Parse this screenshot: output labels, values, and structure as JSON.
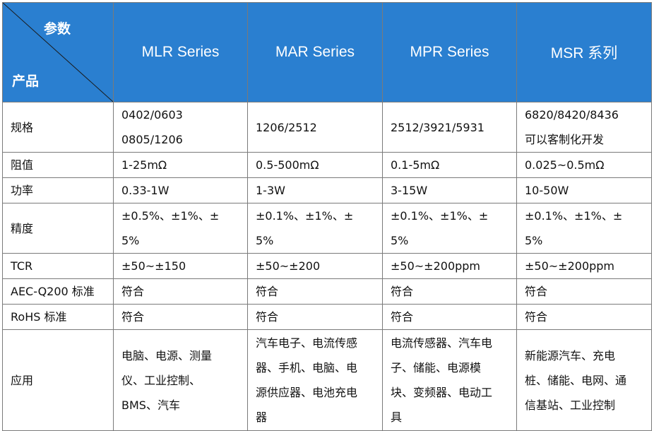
{
  "header": {
    "corner_top": "参数",
    "corner_bottom": "产品",
    "series": [
      "MLR Series",
      "MAR Series",
      "MPR Series",
      "MSR 系列"
    ]
  },
  "rows": [
    {
      "label": "规格",
      "cells": [
        [
          "0402/0603",
          "0805/1206"
        ],
        [
          "1206/2512"
        ],
        [
          "2512/3921/5931"
        ],
        [
          "6820/8420/8436",
          "可以客制化开发"
        ]
      ]
    },
    {
      "label": "阻值",
      "cells": [
        [
          "1-25mΩ"
        ],
        [
          "0.5-500mΩ"
        ],
        [
          "0.1-5mΩ"
        ],
        [
          "0.025~0.5mΩ"
        ]
      ]
    },
    {
      "label": "功率",
      "cells": [
        [
          "0.33-1W"
        ],
        [
          "1-3W"
        ],
        [
          "3-15W"
        ],
        [
          "10-50W"
        ]
      ]
    },
    {
      "label": "精度",
      "cells": [
        [
          "±0.5%、±1%、±",
          "5%"
        ],
        [
          "±0.1%、±1%、±",
          "5%"
        ],
        [
          "±0.1%、±1%、±",
          "5%"
        ],
        [
          "±0.1%、±1%、±",
          "5%"
        ]
      ]
    },
    {
      "label": "TCR",
      "cells": [
        [
          "±50~±150"
        ],
        [
          "±50~±200"
        ],
        [
          "±50~±200ppm"
        ],
        [
          "±50~±200ppm"
        ]
      ]
    },
    {
      "label": "AEC-Q200 标准",
      "cells": [
        [
          "符合"
        ],
        [
          "符合"
        ],
        [
          "符合"
        ],
        [
          "符合"
        ]
      ]
    },
    {
      "label": "RoHS 标准",
      "cells": [
        [
          "符合"
        ],
        [
          "符合"
        ],
        [
          "符合"
        ],
        [
          "符合"
        ]
      ]
    },
    {
      "label": "应用",
      "cells": [
        [
          "电脑、电源、测量",
          "仪、工业控制、",
          "BMS、汽车"
        ],
        [
          "汽车电子、电流传感",
          "器、手机、电脑、电",
          "源供应器、电池充电",
          "器"
        ],
        [
          "电流传感器、汽车电",
          "子、储能、电源模",
          "块、变频器、电动工",
          "具"
        ],
        [
          "新能源汽车、充电",
          "桩、储能、电网、通",
          "信基站、工业控制"
        ]
      ]
    }
  ]
}
